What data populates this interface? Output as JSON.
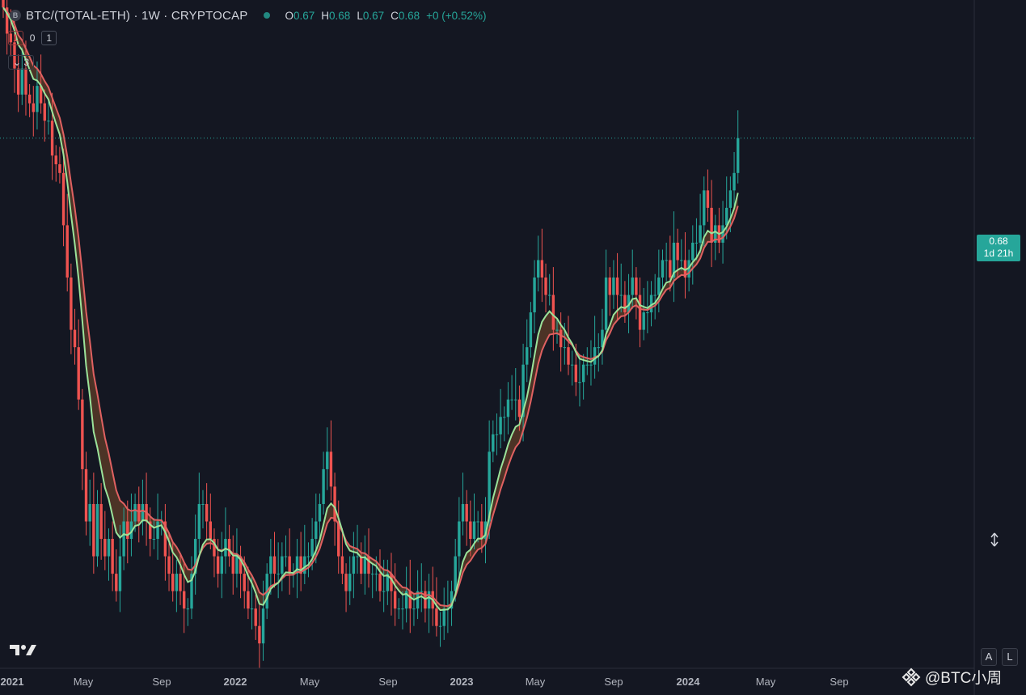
{
  "legend": {
    "symbol_badge": "B",
    "title": "BTC/(TOTAL-ETH) · 1W · CRYPTOCAP",
    "ohlc": [
      {
        "k": "O",
        "v": "0.67"
      },
      {
        "k": "H",
        "v": "0.68"
      },
      {
        "k": "L",
        "v": "0.67"
      },
      {
        "k": "C",
        "v": "0.68"
      },
      {
        "k": "",
        "v": "+0 (+0.52%)"
      }
    ],
    "row2": {
      "a": "1",
      "b": "0",
      "c": "1"
    },
    "collapse": "3"
  },
  "price_tag": {
    "price": "0.68",
    "countdown": "1d 21h"
  },
  "scale_buttons": {
    "auto": "A",
    "log": "L"
  },
  "watermark": "@BTC小周",
  "colors": {
    "up": "#26a69a",
    "down": "#ef5350",
    "ribbon_fast": "#9be39a",
    "ribbon_slow": "#e06161"
  },
  "chart_data": {
    "type": "candlestick",
    "timeframe": "1W",
    "x_tick_labels": [
      "2021",
      "May",
      "Sep",
      "2022",
      "May",
      "Sep",
      "2023",
      "May",
      "Sep",
      "2024",
      "May",
      "Sep"
    ],
    "ylim": [
      0.385,
      0.75
    ],
    "last_price": 0.68,
    "series": [
      {
        "name": "BTC/(TOTAL-ETH)",
        "type": "candlestick",
        "close": [
          0.755,
          0.74,
          0.735,
          0.72,
          0.705,
          0.72,
          0.705,
          0.7,
          0.695,
          0.71,
          0.7,
          0.69,
          0.69,
          0.67,
          0.665,
          0.66,
          0.63,
          0.6,
          0.57,
          0.56,
          0.53,
          0.49,
          0.46,
          0.47,
          0.44,
          0.47,
          0.45,
          0.44,
          0.45,
          0.43,
          0.42,
          0.44,
          0.46,
          0.45,
          0.46,
          0.47,
          0.46,
          0.47,
          0.46,
          0.45,
          0.45,
          0.46,
          0.46,
          0.44,
          0.43,
          0.42,
          0.43,
          0.42,
          0.41,
          0.41,
          0.43,
          0.45,
          0.47,
          0.47,
          0.46,
          0.45,
          0.44,
          0.43,
          0.44,
          0.45,
          0.44,
          0.43,
          0.44,
          0.43,
          0.42,
          0.41,
          0.41,
          0.4,
          0.39,
          0.41,
          0.43,
          0.44,
          0.43,
          0.43,
          0.44,
          0.44,
          0.43,
          0.43,
          0.44,
          0.43,
          0.44,
          0.44,
          0.45,
          0.46,
          0.47,
          0.49,
          0.5,
          0.48,
          0.46,
          0.44,
          0.43,
          0.42,
          0.43,
          0.44,
          0.44,
          0.43,
          0.44,
          0.43,
          0.43,
          0.43,
          0.42,
          0.42,
          0.43,
          0.42,
          0.41,
          0.41,
          0.41,
          0.42,
          0.41,
          0.41,
          0.42,
          0.42,
          0.41,
          0.42,
          0.41,
          0.4,
          0.4,
          0.41,
          0.41,
          0.42,
          0.44,
          0.46,
          0.47,
          0.46,
          0.45,
          0.46,
          0.46,
          0.45,
          0.46,
          0.5,
          0.51,
          0.51,
          0.52,
          0.52,
          0.53,
          0.53,
          0.53,
          0.52,
          0.55,
          0.56,
          0.58,
          0.6,
          0.61,
          0.6,
          0.59,
          0.59,
          0.57,
          0.57,
          0.56,
          0.56,
          0.55,
          0.55,
          0.54,
          0.54,
          0.55,
          0.55,
          0.55,
          0.56,
          0.56,
          0.57,
          0.6,
          0.59,
          0.6,
          0.59,
          0.59,
          0.58,
          0.59,
          0.6,
          0.59,
          0.57,
          0.58,
          0.58,
          0.59,
          0.59,
          0.6,
          0.61,
          0.61,
          0.6,
          0.62,
          0.61,
          0.61,
          0.6,
          0.61,
          0.62,
          0.62,
          0.63,
          0.65,
          0.64,
          0.62,
          0.63,
          0.62,
          0.63,
          0.64,
          0.65,
          0.66,
          0.68
        ]
      },
      {
        "name": "EMA fast",
        "type": "line",
        "color": "#9be39a"
      },
      {
        "name": "EMA slow",
        "type": "line",
        "color": "#e06161"
      }
    ]
  }
}
